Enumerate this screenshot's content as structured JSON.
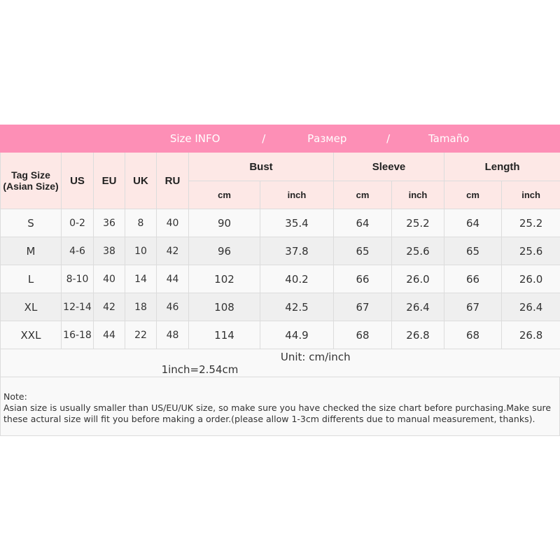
{
  "title": {
    "parts": [
      "Size INFO",
      "/",
      "Размер",
      "/",
      "Tamaño"
    ]
  },
  "headers": {
    "tag": "Tag Size",
    "tag2": "(Asian Size)",
    "us": "US",
    "eu": "EU",
    "uk": "UK",
    "ru": "RU",
    "bust": "Bust",
    "sleeve": "Sleeve",
    "length": "Length",
    "cm": "cm",
    "inch": "inch"
  },
  "rows": [
    [
      "S",
      "0-2",
      "36",
      "8",
      "40",
      "90",
      "35.4",
      "64",
      "25.2",
      "64",
      "25.2"
    ],
    [
      "M",
      "4-6",
      "38",
      "10",
      "42",
      "96",
      "37.8",
      "65",
      "25.6",
      "65",
      "25.6"
    ],
    [
      "L",
      "8-10",
      "40",
      "14",
      "44",
      "102",
      "40.2",
      "66",
      "26.0",
      "66",
      "26.0"
    ],
    [
      "XL",
      "12-14",
      "42",
      "18",
      "46",
      "108",
      "42.5",
      "67",
      "26.4",
      "67",
      "26.4"
    ],
    [
      "XXL",
      "16-18",
      "44",
      "22",
      "48",
      "114",
      "44.9",
      "68",
      "26.8",
      "68",
      "26.8"
    ]
  ],
  "unit": "Unit: cm/inch",
  "conversion": "1inch=2.54cm",
  "note": {
    "label": "Note:",
    "line1": "Asian size is usually smaller than US/EU/UK size, so make sure you have checked the size chart before purchasing.Make sure",
    "line2": "these actural size will fit you before making a order.(please allow 1-3cm differents due to manual measurement, thanks)."
  },
  "colors": {
    "title_bg": "#fd8fb6",
    "header_bg": "#fde8e6"
  }
}
